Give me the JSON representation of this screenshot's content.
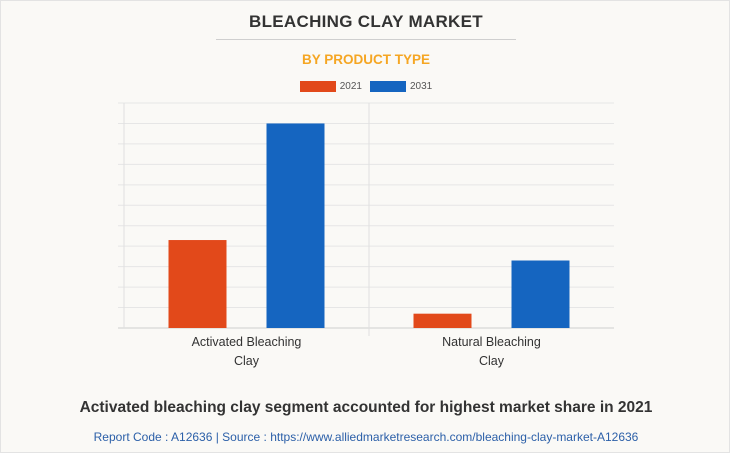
{
  "header": {
    "title": "BLEACHING CLAY MARKET",
    "subtitle": "BY PRODUCT TYPE"
  },
  "footer": {
    "caption": "Activated bleaching clay segment accounted for highest market share in 2021",
    "source": "Report Code : A12636  |  Source : https://www.alliedmarketresearch.com/bleaching-clay-market-A12636"
  },
  "colors": {
    "2021": "#e2491a",
    "2031": "#1565c0",
    "title": "#333333",
    "subtitle": "#f5a623",
    "source": "#2b5fa8"
  },
  "chart_data": {
    "type": "bar",
    "categories": [
      [
        "Activated Bleaching",
        "Clay"
      ],
      [
        "Natural Bleaching",
        "Clay"
      ]
    ],
    "series": [
      {
        "name": "2021",
        "values": [
          43,
          7
        ]
      },
      {
        "name": "2031",
        "values": [
          100,
          33
        ]
      }
    ],
    "ylim": [
      0,
      110
    ],
    "y_unit": "relative (no values printed)",
    "grid": true,
    "legend": "top-center",
    "ylabel": "",
    "xlabel": ""
  }
}
